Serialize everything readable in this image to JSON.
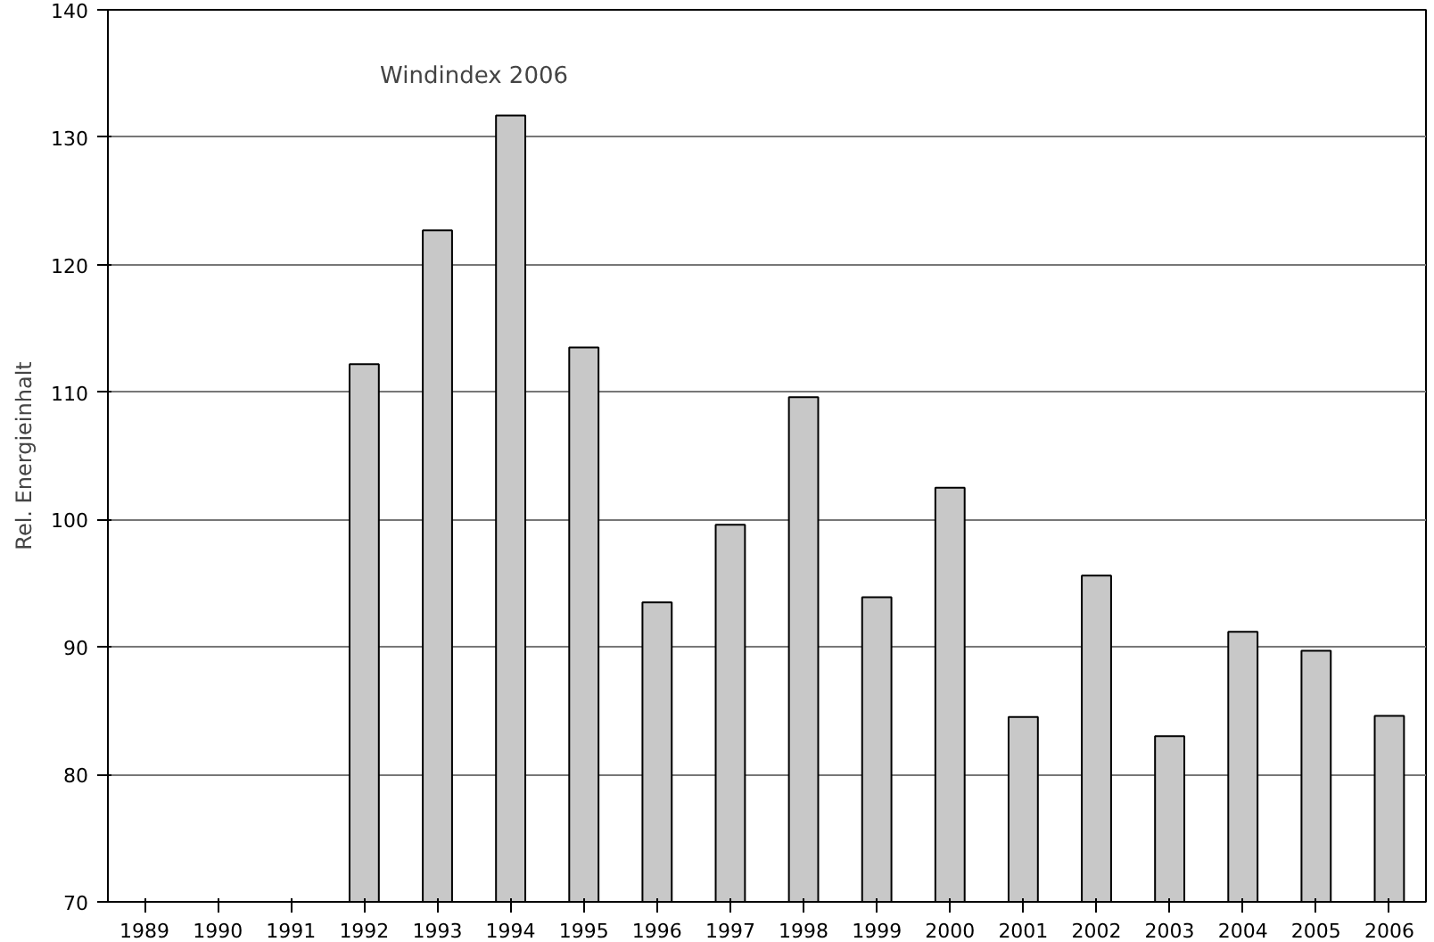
{
  "chart_data": {
    "type": "bar",
    "title": "Windindex 2006",
    "ylabel": "Rel. Energieinhalt",
    "categories": [
      "1989",
      "1990",
      "1991",
      "1992",
      "1993",
      "1994",
      "1995",
      "1996",
      "1997",
      "1998",
      "1999",
      "2000",
      "2001",
      "2002",
      "2003",
      "2004",
      "2005",
      "2006"
    ],
    "values": [
      null,
      null,
      null,
      112.2,
      122.7,
      131.7,
      113.5,
      93.5,
      99.6,
      109.6,
      93.9,
      102.5,
      84.5,
      95.6,
      83.0,
      91.2,
      89.7,
      84.6
    ],
    "color": "#c8c8c8",
    "ylim": [
      70,
      140
    ],
    "yticks": [
      70,
      80,
      90,
      100,
      110,
      120,
      130,
      140
    ],
    "grid": "y"
  }
}
